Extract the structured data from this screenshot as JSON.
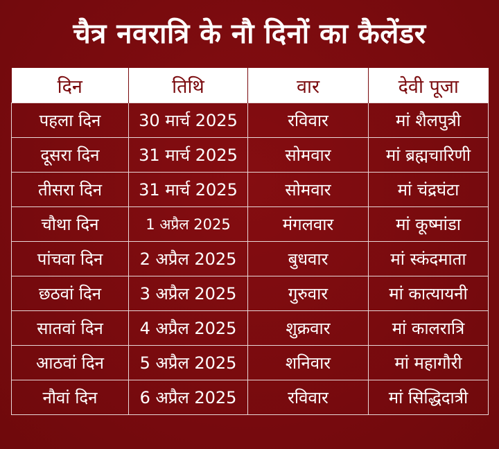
{
  "title": "चैत्र नवरात्रि के नौ दिनों का कैलेंडर",
  "colors": {
    "background": "#7a0a0d",
    "header_bg": "#ffffff",
    "header_text": "#7a0a0d",
    "body_text": "#ffffff",
    "grid": "#e9d9d9"
  },
  "table": {
    "headers": [
      "दिन",
      "तिथि",
      "वार",
      "देवी पूजा"
    ],
    "rows": [
      [
        "पहला दिन",
        "30 मार्च 2025",
        "रविवार",
        "मां शैलपुत्री"
      ],
      [
        "दूसरा दिन",
        "31 मार्च 2025",
        "सोमवार",
        "मां ब्रह्मचारिणी"
      ],
      [
        "तीसरा दिन",
        "31 मार्च 2025",
        "सोमवार",
        "मां चंद्रघंटा"
      ],
      [
        "चौथा दिन",
        "1 अप्रैल 2025",
        "मंगलवार",
        "मां कूष्मांडा"
      ],
      [
        "पांचवा दिन",
        "2 अप्रैल 2025",
        "बुधवार",
        "मां स्कंदमाता"
      ],
      [
        "छठवां दिन",
        "3 अप्रैल 2025",
        "गुरुवार",
        "मां कात्यायनी"
      ],
      [
        "सातवां दिन",
        "4 अप्रैल 2025",
        "शुक्रवार",
        "मां कालरात्रि"
      ],
      [
        "आठवां दिन",
        "5 अप्रैल 2025",
        "शनिवार",
        "मां महागौरी"
      ],
      [
        "नौवां दिन",
        "6 अप्रैल 2025",
        "रविवार",
        "मां सिद्धिदात्री"
      ]
    ]
  }
}
